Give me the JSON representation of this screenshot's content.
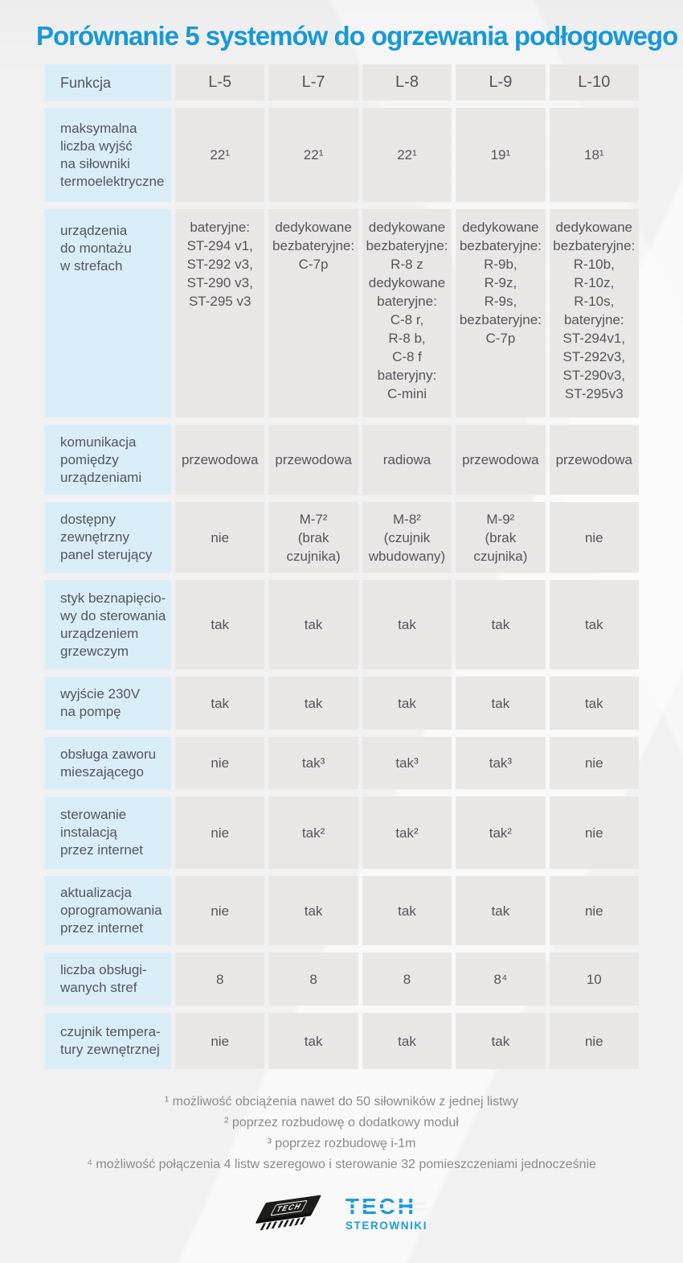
{
  "title": "Porównanie 5 systemów do ogrzewania podłogowego",
  "colors": {
    "accent_blue": "#1899d6",
    "label_cell_blue": "#d9edf9",
    "value_cell_gray": "#e8e7e6",
    "logo_blue": "#1b9cd8"
  },
  "table": {
    "header": {
      "label": "Funkcja",
      "columns": [
        "L-5",
        "L-7",
        "L-8",
        "L-9",
        "L-10"
      ]
    },
    "rows": [
      {
        "label": "maksymalna\nliczba wyjść\nna siłowniki\ntermoelektryczne",
        "values": [
          "22¹",
          "22¹",
          "22¹",
          "19¹",
          "18¹"
        ]
      },
      {
        "label": "urządzenia\ndo montażu\nw strefach",
        "values": [
          "bateryjne:\nST-294 v1,\nST-292 v3,\nST-290 v3,\nST-295 v3",
          "dedykowane\nbezbateryjne:\nC-7p",
          "dedykowane\nbezbateryjne:\nR-8 z\ndedykowane\nbateryjne:\nC-8 r,\nR-8 b,\nC-8 f\nbateryjny:\nC-mini",
          "dedykowane\nbezbateryjne:\nR-9b,\nR-9z,\nR-9s,\nbezbateryjne:\nC-7p",
          "dedykowane\nbezbateryjne:\nR-10b,\nR-10z,\nR-10s,\nbateryjne:\nST-294v1,\nST-292v3,\nST-290v3,\nST-295v3"
        ]
      },
      {
        "label": "komunikacja\npomiędzy\nurządzeniami",
        "values": [
          "przewodowa",
          "przewodowa",
          "radiowa",
          "przewodowa",
          "przewodowa"
        ]
      },
      {
        "label": "dostępny\nzewnętrzny\npanel sterujący",
        "values": [
          "nie",
          "M-7²\n(brak\nczujnika)",
          "M-8²\n(czujnik\nwbudowany)",
          "M-9²\n(brak\nczujnika)",
          "nie"
        ]
      },
      {
        "label": "styk beznapięcio-\nwy do sterowania\nurządzeniem\ngrzewczym",
        "values": [
          "tak",
          "tak",
          "tak",
          "tak",
          "tak"
        ]
      },
      {
        "label": "wyjście 230V\nna pompę",
        "values": [
          "tak",
          "tak",
          "tak",
          "tak",
          "tak"
        ]
      },
      {
        "label": "obsługa zaworu\nmieszającego",
        "values": [
          "nie",
          "tak³",
          "tak³",
          "tak³",
          "nie"
        ]
      },
      {
        "label": "sterowanie\ninstalacją\nprzez internet",
        "values": [
          "nie",
          "tak²",
          "tak²",
          "tak²",
          "nie"
        ]
      },
      {
        "label": "aktualizacja\noprogramowania\nprzez internet",
        "values": [
          "nie",
          "tak",
          "tak",
          "tak",
          "nie"
        ]
      },
      {
        "label": "liczba obsługi-\nwanych stref",
        "values": [
          "8",
          "8",
          "8",
          "8⁴",
          "10"
        ]
      },
      {
        "label": "czujnik tempera-\ntury zewnętrznej",
        "values": [
          "nie",
          "tak",
          "tak",
          "tak",
          "nie"
        ]
      }
    ]
  },
  "footnotes": [
    "¹ możliwość obciążenia nawet do 50 siłowników z jednej listwy",
    "² poprzez rozbudowę o dodatkowy moduł",
    "³ poprzez rozbudowę i-1m",
    "⁴ możliwość połączenia 4 listw szeregowo i sterowanie 32 pomieszczeniami jednocześnie"
  ],
  "logo": {
    "chip_text": "TECH",
    "brand": "TECH",
    "subtitle": "STEROWNIKI"
  }
}
